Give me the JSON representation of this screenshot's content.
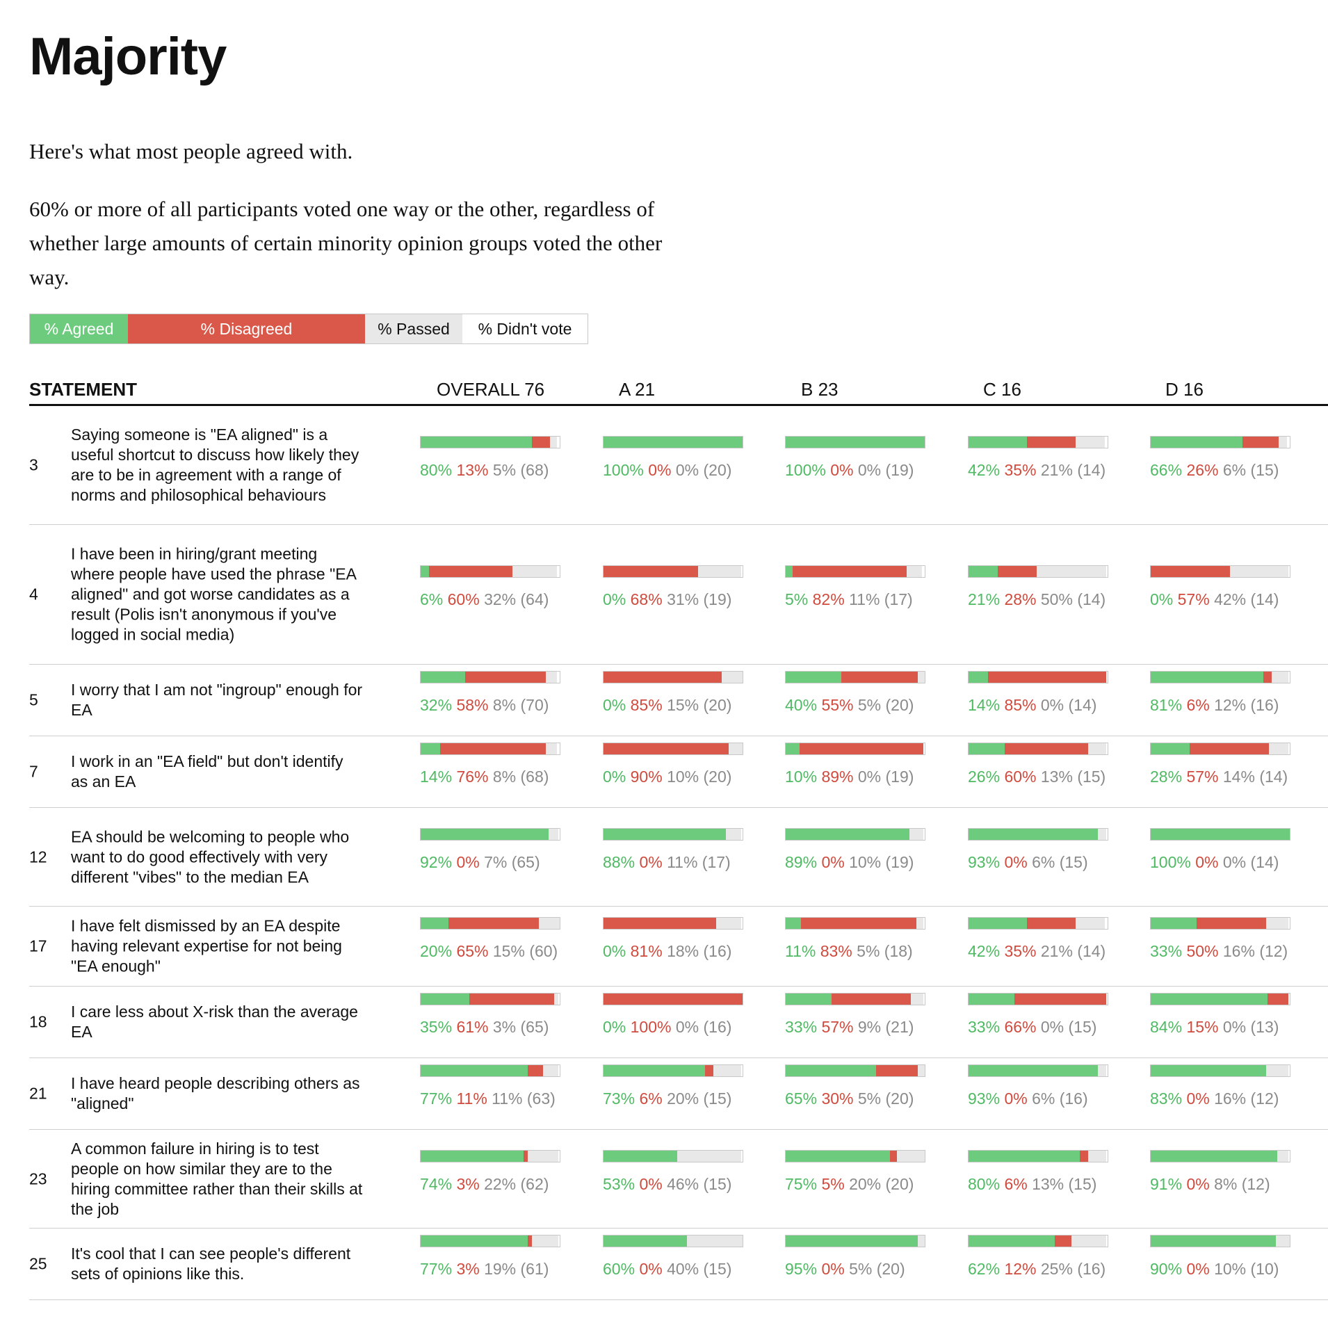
{
  "title": "Majority",
  "intro": "Here's what most people agreed with.",
  "description": "60% or more of all participants voted one way or the other, regardless of whether large amounts of certain minority opinion groups voted the other way.",
  "legend": {
    "agreed": "% Agreed",
    "disagreed": "% Disagreed",
    "passed": "% Passed",
    "didnt_vote": "% Didn't vote"
  },
  "colors": {
    "agreed": "#6ccb7d",
    "disagreed": "#d9584a",
    "passed": "#e8e8e8",
    "didnt_vote": "#ffffff"
  },
  "table": {
    "statement_header": "STATEMENT"
  },
  "chart_data": {
    "type": "table",
    "columns": [
      "OVERALL 76",
      "A 21",
      "B 23",
      "C 16",
      "D 16"
    ],
    "rows": [
      {
        "id": "3",
        "statement": "Saying someone is \"EA aligned\" is a useful shortcut to discuss how likely they are to be in agreement with a range of norms and philosophical behaviours",
        "cells": [
          {
            "agree": 80,
            "disagree": 13,
            "pass": 5,
            "n": 68
          },
          {
            "agree": 100,
            "disagree": 0,
            "pass": 0,
            "n": 20
          },
          {
            "agree": 100,
            "disagree": 0,
            "pass": 0,
            "n": 19
          },
          {
            "agree": 42,
            "disagree": 35,
            "pass": 21,
            "n": 14
          },
          {
            "agree": 66,
            "disagree": 26,
            "pass": 6,
            "n": 15
          }
        ]
      },
      {
        "id": "4",
        "statement": "I have been in hiring/grant meeting where people have used the phrase \"EA aligned\" and got worse candidates as a result (Polis isn't anonymous if you've logged in social media)",
        "cells": [
          {
            "agree": 6,
            "disagree": 60,
            "pass": 32,
            "n": 64
          },
          {
            "agree": 0,
            "disagree": 68,
            "pass": 31,
            "n": 19
          },
          {
            "agree": 5,
            "disagree": 82,
            "pass": 11,
            "n": 17
          },
          {
            "agree": 21,
            "disagree": 28,
            "pass": 50,
            "n": 14
          },
          {
            "agree": 0,
            "disagree": 57,
            "pass": 42,
            "n": 14
          }
        ]
      },
      {
        "id": "5",
        "statement": "I worry that I am not \"ingroup\" enough for EA",
        "cells": [
          {
            "agree": 32,
            "disagree": 58,
            "pass": 8,
            "n": 70
          },
          {
            "agree": 0,
            "disagree": 85,
            "pass": 15,
            "n": 20
          },
          {
            "agree": 40,
            "disagree": 55,
            "pass": 5,
            "n": 20
          },
          {
            "agree": 14,
            "disagree": 85,
            "pass": 0,
            "n": 14
          },
          {
            "agree": 81,
            "disagree": 6,
            "pass": 12,
            "n": 16
          }
        ]
      },
      {
        "id": "7",
        "statement": "I work in an \"EA field\" but don't identify as an EA",
        "cells": [
          {
            "agree": 14,
            "disagree": 76,
            "pass": 8,
            "n": 68
          },
          {
            "agree": 0,
            "disagree": 90,
            "pass": 10,
            "n": 20
          },
          {
            "agree": 10,
            "disagree": 89,
            "pass": 0,
            "n": 19
          },
          {
            "agree": 26,
            "disagree": 60,
            "pass": 13,
            "n": 15
          },
          {
            "agree": 28,
            "disagree": 57,
            "pass": 14,
            "n": 14
          }
        ]
      },
      {
        "id": "12",
        "statement": "EA should be welcoming to people who want to do good effectively with very different \"vibes\" to the median EA",
        "cells": [
          {
            "agree": 92,
            "disagree": 0,
            "pass": 7,
            "n": 65
          },
          {
            "agree": 88,
            "disagree": 0,
            "pass": 11,
            "n": 17
          },
          {
            "agree": 89,
            "disagree": 0,
            "pass": 10,
            "n": 19
          },
          {
            "agree": 93,
            "disagree": 0,
            "pass": 6,
            "n": 15
          },
          {
            "agree": 100,
            "disagree": 0,
            "pass": 0,
            "n": 14
          }
        ]
      },
      {
        "id": "17",
        "statement": "I have felt dismissed by an EA despite having relevant expertise for not being \"EA enough\"",
        "cells": [
          {
            "agree": 20,
            "disagree": 65,
            "pass": 15,
            "n": 60
          },
          {
            "agree": 0,
            "disagree": 81,
            "pass": 18,
            "n": 16
          },
          {
            "agree": 11,
            "disagree": 83,
            "pass": 5,
            "n": 18
          },
          {
            "agree": 42,
            "disagree": 35,
            "pass": 21,
            "n": 14
          },
          {
            "agree": 33,
            "disagree": 50,
            "pass": 16,
            "n": 12
          }
        ]
      },
      {
        "id": "18",
        "statement": "I care less about X-risk than the average EA",
        "cells": [
          {
            "agree": 35,
            "disagree": 61,
            "pass": 3,
            "n": 65
          },
          {
            "agree": 0,
            "disagree": 100,
            "pass": 0,
            "n": 16
          },
          {
            "agree": 33,
            "disagree": 57,
            "pass": 9,
            "n": 21
          },
          {
            "agree": 33,
            "disagree": 66,
            "pass": 0,
            "n": 15
          },
          {
            "agree": 84,
            "disagree": 15,
            "pass": 0,
            "n": 13
          }
        ]
      },
      {
        "id": "21",
        "statement": "I have heard people describing others as \"aligned\"",
        "cells": [
          {
            "agree": 77,
            "disagree": 11,
            "pass": 11,
            "n": 63
          },
          {
            "agree": 73,
            "disagree": 6,
            "pass": 20,
            "n": 15
          },
          {
            "agree": 65,
            "disagree": 30,
            "pass": 5,
            "n": 20
          },
          {
            "agree": 93,
            "disagree": 0,
            "pass": 6,
            "n": 16
          },
          {
            "agree": 83,
            "disagree": 0,
            "pass": 16,
            "n": 12
          }
        ]
      },
      {
        "id": "23",
        "statement": "A common failure in hiring is to test people on how similar they are to the hiring committee rather than their skills at the job",
        "cells": [
          {
            "agree": 74,
            "disagree": 3,
            "pass": 22,
            "n": 62
          },
          {
            "agree": 53,
            "disagree": 0,
            "pass": 46,
            "n": 15
          },
          {
            "agree": 75,
            "disagree": 5,
            "pass": 20,
            "n": 20
          },
          {
            "agree": 80,
            "disagree": 6,
            "pass": 13,
            "n": 15
          },
          {
            "agree": 91,
            "disagree": 0,
            "pass": 8,
            "n": 12
          }
        ]
      },
      {
        "id": "25",
        "statement": "It's cool that I can see people's different sets of opinions like this.",
        "cells": [
          {
            "agree": 77,
            "disagree": 3,
            "pass": 19,
            "n": 61
          },
          {
            "agree": 60,
            "disagree": 0,
            "pass": 40,
            "n": 15
          },
          {
            "agree": 95,
            "disagree": 0,
            "pass": 5,
            "n": 20
          },
          {
            "agree": 62,
            "disagree": 12,
            "pass": 25,
            "n": 16
          },
          {
            "agree": 90,
            "disagree": 0,
            "pass": 10,
            "n": 10
          }
        ]
      }
    ]
  }
}
